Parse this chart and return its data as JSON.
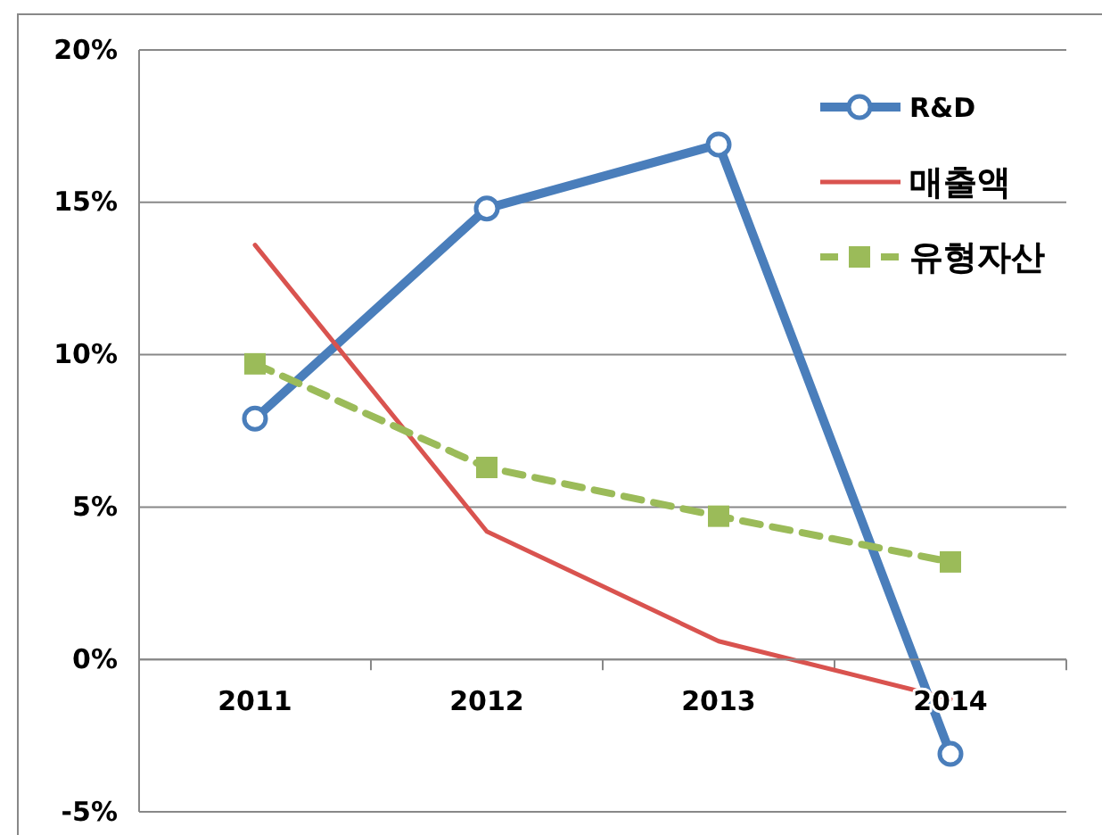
{
  "chart_data": {
    "type": "line",
    "categories": [
      "2011",
      "2012",
      "2013",
      "2014"
    ],
    "series": [
      {
        "name": "R&D",
        "color": "#4a7ebb",
        "values": [
          7.9,
          14.8,
          16.9,
          -3.1
        ],
        "marker": "circle",
        "line_style": "solid"
      },
      {
        "name": "매출액",
        "color": "#d9534f",
        "values": [
          13.6,
          4.2,
          0.6,
          -1.3
        ],
        "marker": "none",
        "line_style": "solid"
      },
      {
        "name": "유형자산",
        "color": "#9bbb59",
        "values": [
          9.7,
          6.3,
          4.7,
          3.2
        ],
        "marker": "square",
        "line_style": "dashed"
      }
    ],
    "ylim": [
      -5,
      20
    ],
    "yticks": [
      {
        "value": -5,
        "label": "-5%"
      },
      {
        "value": 0,
        "label": "0%"
      },
      {
        "value": 5,
        "label": "5%"
      },
      {
        "value": 10,
        "label": "10%"
      },
      {
        "value": 15,
        "label": "15%"
      },
      {
        "value": 20,
        "label": "20%"
      }
    ],
    "grid": "y",
    "legend": "top right"
  }
}
